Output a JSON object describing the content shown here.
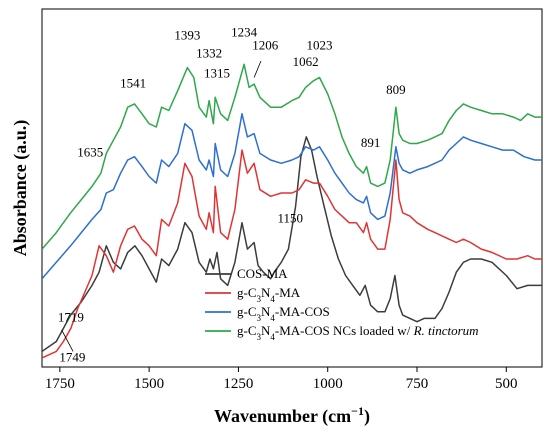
{
  "chart_data": {
    "type": "line",
    "xlabel": "Wavenumber (cm",
    "xlabel_sup": "−1",
    "xlabel_close": ")",
    "ylabel": "Absorbance (a.u.)",
    "xlim": [
      1800,
      400
    ],
    "x_reversed": true,
    "ylim": [
      0,
      1
    ],
    "x_ticks": [
      {
        "value": 1750,
        "label": "1750"
      },
      {
        "value": 1500,
        "label": "1500"
      },
      {
        "value": 1250,
        "label": "1250"
      },
      {
        "value": 1000,
        "label": "1000"
      },
      {
        "value": 750,
        "label": "750"
      },
      {
        "value": 500,
        "label": "500"
      }
    ],
    "legend_position": "bottom-right",
    "series": [
      {
        "name": "COS-MA",
        "color": "#3c3c3c",
        "points": [
          [
            1800,
            0.02
          ],
          [
            1760,
            0.05
          ],
          [
            1720,
            0.13
          ],
          [
            1690,
            0.17
          ],
          [
            1660,
            0.22
          ],
          [
            1640,
            0.26
          ],
          [
            1620,
            0.34
          ],
          [
            1600,
            0.29
          ],
          [
            1580,
            0.27
          ],
          [
            1560,
            0.32
          ],
          [
            1540,
            0.34
          ],
          [
            1520,
            0.31
          ],
          [
            1500,
            0.27
          ],
          [
            1480,
            0.23
          ],
          [
            1465,
            0.3
          ],
          [
            1445,
            0.28
          ],
          [
            1420,
            0.33
          ],
          [
            1400,
            0.41
          ],
          [
            1380,
            0.38
          ],
          [
            1360,
            0.29
          ],
          [
            1340,
            0.26
          ],
          [
            1330,
            0.3
          ],
          [
            1320,
            0.27
          ],
          [
            1310,
            0.32
          ],
          [
            1300,
            0.24
          ],
          [
            1280,
            0.22
          ],
          [
            1260,
            0.29
          ],
          [
            1240,
            0.41
          ],
          [
            1225,
            0.33
          ],
          [
            1206,
            0.35
          ],
          [
            1195,
            0.28
          ],
          [
            1180,
            0.26
          ],
          [
            1160,
            0.24
          ],
          [
            1150,
            0.26
          ],
          [
            1130,
            0.29
          ],
          [
            1110,
            0.33
          ],
          [
            1090,
            0.46
          ],
          [
            1075,
            0.61
          ],
          [
            1060,
            0.67
          ],
          [
            1045,
            0.63
          ],
          [
            1030,
            0.55
          ],
          [
            1010,
            0.46
          ],
          [
            990,
            0.37
          ],
          [
            970,
            0.3
          ],
          [
            950,
            0.25
          ],
          [
            930,
            0.22
          ],
          [
            910,
            0.19
          ],
          [
            895,
            0.22
          ],
          [
            880,
            0.16
          ],
          [
            860,
            0.14
          ],
          [
            840,
            0.14
          ],
          [
            825,
            0.18
          ],
          [
            812,
            0.25
          ],
          [
            800,
            0.16
          ],
          [
            790,
            0.13
          ],
          [
            770,
            0.12
          ],
          [
            750,
            0.11
          ],
          [
            730,
            0.12
          ],
          [
            700,
            0.12
          ],
          [
            680,
            0.15
          ],
          [
            660,
            0.2
          ],
          [
            640,
            0.26
          ],
          [
            620,
            0.29
          ],
          [
            600,
            0.3
          ],
          [
            570,
            0.3
          ],
          [
            540,
            0.29
          ],
          [
            500,
            0.25
          ],
          [
            470,
            0.21
          ],
          [
            440,
            0.22
          ],
          [
            400,
            0.22
          ]
        ]
      },
      {
        "name": "g-C₃N₄-MA",
        "name_parts": [
          "g-C",
          "3",
          "N",
          "4",
          "-MA",
          "",
          ""
        ],
        "color": "#e03434",
        "points": [
          [
            1800,
            0.0
          ],
          [
            1760,
            0.02
          ],
          [
            1740,
            0.05
          ],
          [
            1719,
            0.09
          ],
          [
            1700,
            0.15
          ],
          [
            1680,
            0.2
          ],
          [
            1660,
            0.25
          ],
          [
            1640,
            0.34
          ],
          [
            1620,
            0.31
          ],
          [
            1600,
            0.26
          ],
          [
            1580,
            0.34
          ],
          [
            1560,
            0.39
          ],
          [
            1541,
            0.4
          ],
          [
            1520,
            0.36
          ],
          [
            1500,
            0.34
          ],
          [
            1480,
            0.31
          ],
          [
            1465,
            0.42
          ],
          [
            1445,
            0.4
          ],
          [
            1420,
            0.47
          ],
          [
            1400,
            0.59
          ],
          [
            1380,
            0.55
          ],
          [
            1360,
            0.43
          ],
          [
            1340,
            0.39
          ],
          [
            1332,
            0.44
          ],
          [
            1320,
            0.38
          ],
          [
            1315,
            0.52
          ],
          [
            1300,
            0.38
          ],
          [
            1280,
            0.36
          ],
          [
            1260,
            0.45
          ],
          [
            1240,
            0.63
          ],
          [
            1225,
            0.56
          ],
          [
            1206,
            0.59
          ],
          [
            1190,
            0.51
          ],
          [
            1160,
            0.49
          ],
          [
            1130,
            0.5
          ],
          [
            1100,
            0.5
          ],
          [
            1080,
            0.51
          ],
          [
            1062,
            0.54
          ],
          [
            1040,
            0.53
          ],
          [
            1023,
            0.53
          ],
          [
            1000,
            0.49
          ],
          [
            980,
            0.45
          ],
          [
            960,
            0.43
          ],
          [
            940,
            0.41
          ],
          [
            920,
            0.41
          ],
          [
            900,
            0.38
          ],
          [
            891,
            0.41
          ],
          [
            880,
            0.36
          ],
          [
            860,
            0.33
          ],
          [
            840,
            0.33
          ],
          [
            825,
            0.42
          ],
          [
            809,
            0.6
          ],
          [
            800,
            0.48
          ],
          [
            790,
            0.44
          ],
          [
            770,
            0.43
          ],
          [
            750,
            0.41
          ],
          [
            720,
            0.39
          ],
          [
            700,
            0.38
          ],
          [
            680,
            0.37
          ],
          [
            660,
            0.36
          ],
          [
            640,
            0.35
          ],
          [
            620,
            0.36
          ],
          [
            600,
            0.35
          ],
          [
            570,
            0.33
          ],
          [
            540,
            0.32
          ],
          [
            500,
            0.3
          ],
          [
            470,
            0.3
          ],
          [
            440,
            0.31
          ],
          [
            420,
            0.3
          ],
          [
            400,
            0.3
          ]
        ]
      },
      {
        "name": "g-C₃N₄-MA-COS",
        "name_parts": [
          "g-C",
          "3",
          "N",
          "4",
          "-MA-COS",
          "",
          ""
        ],
        "color": "#2c6fd4",
        "points": [
          [
            1800,
            0.24
          ],
          [
            1760,
            0.29
          ],
          [
            1720,
            0.34
          ],
          [
            1690,
            0.38
          ],
          [
            1660,
            0.42
          ],
          [
            1635,
            0.45
          ],
          [
            1620,
            0.5
          ],
          [
            1600,
            0.51
          ],
          [
            1580,
            0.56
          ],
          [
            1560,
            0.6
          ],
          [
            1541,
            0.61
          ],
          [
            1520,
            0.58
          ],
          [
            1500,
            0.55
          ],
          [
            1480,
            0.53
          ],
          [
            1465,
            0.6
          ],
          [
            1445,
            0.58
          ],
          [
            1420,
            0.62
          ],
          [
            1400,
            0.71
          ],
          [
            1380,
            0.69
          ],
          [
            1360,
            0.6
          ],
          [
            1340,
            0.57
          ],
          [
            1332,
            0.6
          ],
          [
            1320,
            0.55
          ],
          [
            1315,
            0.65
          ],
          [
            1300,
            0.57
          ],
          [
            1280,
            0.55
          ],
          [
            1260,
            0.62
          ],
          [
            1240,
            0.74
          ],
          [
            1225,
            0.67
          ],
          [
            1206,
            0.68
          ],
          [
            1190,
            0.62
          ],
          [
            1160,
            0.6
          ],
          [
            1130,
            0.59
          ],
          [
            1100,
            0.6
          ],
          [
            1080,
            0.61
          ],
          [
            1062,
            0.64
          ],
          [
            1040,
            0.63
          ],
          [
            1023,
            0.64
          ],
          [
            1000,
            0.6
          ],
          [
            980,
            0.56
          ],
          [
            960,
            0.53
          ],
          [
            940,
            0.5
          ],
          [
            920,
            0.48
          ],
          [
            900,
            0.47
          ],
          [
            891,
            0.49
          ],
          [
            880,
            0.44
          ],
          [
            860,
            0.42
          ],
          [
            840,
            0.43
          ],
          [
            825,
            0.5
          ],
          [
            809,
            0.64
          ],
          [
            800,
            0.59
          ],
          [
            790,
            0.57
          ],
          [
            770,
            0.56
          ],
          [
            750,
            0.57
          ],
          [
            720,
            0.58
          ],
          [
            700,
            0.59
          ],
          [
            680,
            0.6
          ],
          [
            660,
            0.63
          ],
          [
            640,
            0.65
          ],
          [
            620,
            0.67
          ],
          [
            600,
            0.66
          ],
          [
            570,
            0.65
          ],
          [
            540,
            0.64
          ],
          [
            510,
            0.63
          ],
          [
            480,
            0.63
          ],
          [
            450,
            0.61
          ],
          [
            420,
            0.6
          ],
          [
            400,
            0.6
          ]
        ]
      },
      {
        "name": "g-C₃N₄-MA-COS NCs loaded w/ R. tinctorum",
        "name_parts": [
          "g-C",
          "3",
          "N",
          "4",
          "-MA-COS NCs loaded w/ ",
          "R. tinctorum",
          ""
        ],
        "color": "#2ea84a",
        "points": [
          [
            1800,
            0.33
          ],
          [
            1760,
            0.38
          ],
          [
            1720,
            0.44
          ],
          [
            1690,
            0.48
          ],
          [
            1660,
            0.52
          ],
          [
            1635,
            0.56
          ],
          [
            1620,
            0.62
          ],
          [
            1600,
            0.66
          ],
          [
            1580,
            0.7
          ],
          [
            1560,
            0.76
          ],
          [
            1541,
            0.77
          ],
          [
            1520,
            0.74
          ],
          [
            1500,
            0.71
          ],
          [
            1480,
            0.7
          ],
          [
            1465,
            0.76
          ],
          [
            1445,
            0.75
          ],
          [
            1420,
            0.81
          ],
          [
            1393,
            0.88
          ],
          [
            1375,
            0.85
          ],
          [
            1360,
            0.76
          ],
          [
            1340,
            0.73
          ],
          [
            1332,
            0.78
          ],
          [
            1320,
            0.71
          ],
          [
            1315,
            0.79
          ],
          [
            1300,
            0.74
          ],
          [
            1280,
            0.72
          ],
          [
            1260,
            0.79
          ],
          [
            1234,
            0.89
          ],
          [
            1220,
            0.82
          ],
          [
            1206,
            0.83
          ],
          [
            1190,
            0.79
          ],
          [
            1160,
            0.76
          ],
          [
            1130,
            0.76
          ],
          [
            1100,
            0.78
          ],
          [
            1080,
            0.79
          ],
          [
            1062,
            0.82
          ],
          [
            1040,
            0.84
          ],
          [
            1023,
            0.85
          ],
          [
            1000,
            0.8
          ],
          [
            980,
            0.74
          ],
          [
            960,
            0.67
          ],
          [
            940,
            0.62
          ],
          [
            920,
            0.58
          ],
          [
            900,
            0.56
          ],
          [
            891,
            0.58
          ],
          [
            880,
            0.53
          ],
          [
            860,
            0.52
          ],
          [
            840,
            0.53
          ],
          [
            825,
            0.6
          ],
          [
            809,
            0.76
          ],
          [
            800,
            0.68
          ],
          [
            790,
            0.66
          ],
          [
            770,
            0.65
          ],
          [
            750,
            0.65
          ],
          [
            720,
            0.66
          ],
          [
            700,
            0.67
          ],
          [
            680,
            0.68
          ],
          [
            660,
            0.72
          ],
          [
            640,
            0.75
          ],
          [
            620,
            0.77
          ],
          [
            600,
            0.76
          ],
          [
            570,
            0.75
          ],
          [
            540,
            0.74
          ],
          [
            510,
            0.74
          ],
          [
            480,
            0.73
          ],
          [
            460,
            0.72
          ],
          [
            440,
            0.74
          ],
          [
            420,
            0.73
          ],
          [
            400,
            0.73
          ]
        ]
      }
    ],
    "annotations": [
      {
        "label": "1393",
        "x": 1393,
        "y": 0.965
      },
      {
        "label": "1332",
        "x": 1332,
        "y": 0.91
      },
      {
        "label": "1315",
        "x": 1310,
        "y": 0.85
      },
      {
        "label": "1234",
        "x": 1234,
        "y": 0.975
      },
      {
        "label": "1206",
        "x": 1175,
        "y": 0.935
      },
      {
        "label": "1062",
        "x": 1062,
        "y": 0.885
      },
      {
        "label": "1023",
        "x": 1023,
        "y": 0.935
      },
      {
        "label": "1541",
        "x": 1545,
        "y": 0.82
      },
      {
        "label": "1635",
        "x": 1665,
        "y": 0.61
      },
      {
        "label": "891",
        "x": 880,
        "y": 0.64
      },
      {
        "label": "809",
        "x": 809,
        "y": 0.8
      },
      {
        "label": "1150",
        "x": 1105,
        "y": 0.41
      },
      {
        "label": "1719",
        "x": 1719,
        "y": 0.11
      },
      {
        "label": "1749",
        "x": 1715,
        "y": -0.01
      }
    ]
  }
}
